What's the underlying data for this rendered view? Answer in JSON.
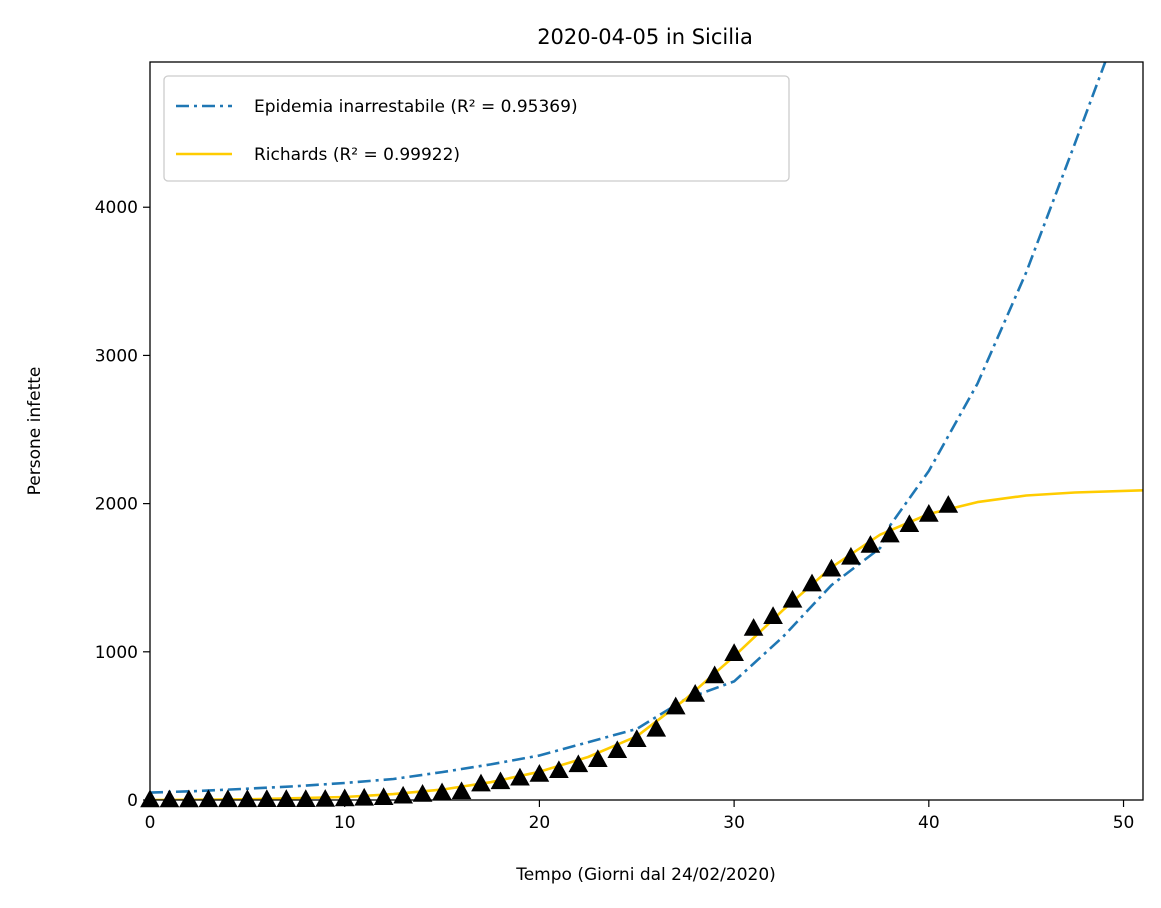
{
  "chart_data": {
    "type": "line",
    "title": "2020-04-05 in Sicilia",
    "xlabel": "Tempo (Giorni dal 24/02/2020)",
    "ylabel": "Persone infette",
    "xlim": [
      0,
      51
    ],
    "ylim": [
      0,
      4980
    ],
    "xticks": [
      0,
      10,
      20,
      30,
      40,
      50
    ],
    "yticks": [
      0,
      1000,
      2000,
      3000,
      4000
    ],
    "legend_position": "upper-left",
    "colors": {
      "exponential": "#1f77b4",
      "richards": "#ffcc00",
      "observed": "#000000"
    },
    "series": [
      {
        "name": "Epidemia inarrestabile (R² = 0.95369)",
        "style": "dashdot",
        "model": "exponential",
        "x": [
          0,
          2.5,
          5,
          7.5,
          10,
          12.5,
          15,
          17.5,
          20,
          22.5,
          25,
          26,
          27.5,
          30,
          32.5,
          35,
          37.5,
          38,
          40,
          42.5,
          45,
          47.5,
          49,
          50,
          51
        ],
        "y": [
          50,
          61,
          76,
          93,
          115,
          142,
          188,
          240,
          300,
          390,
          480,
          560,
          680,
          800,
          1100,
          1450,
          1700,
          1850,
          2220,
          2810,
          3560,
          4430,
          4960,
          5300,
          5700
        ]
      },
      {
        "name": "Richards (R² = 0.99922)",
        "style": "solid",
        "model": "richards",
        "x": [
          0,
          5,
          10,
          12.5,
          15,
          17.5,
          20,
          22.5,
          25,
          27.5,
          30,
          32.5,
          35,
          37.5,
          40,
          42.5,
          45,
          47.5,
          51
        ],
        "y": [
          0,
          5,
          20,
          40,
          70,
          120,
          190,
          290,
          430,
          680,
          970,
          1280,
          1570,
          1790,
          1930,
          2010,
          2055,
          2075,
          2090
        ]
      },
      {
        "name": "",
        "style": "triangle-marker",
        "model": "observed",
        "x": [
          0,
          1,
          2,
          3,
          4,
          5,
          6,
          7,
          8,
          9,
          10,
          11,
          12,
          13,
          14,
          15,
          16,
          17,
          18,
          19,
          20,
          21,
          22,
          23,
          24,
          25,
          26,
          27,
          28,
          29,
          30,
          31,
          32,
          33,
          34,
          35,
          36,
          37,
          38,
          39,
          40,
          41
        ],
        "y": [
          3,
          3,
          3,
          4,
          4,
          4,
          5,
          5,
          5,
          6,
          10,
          14,
          18,
          28,
          40,
          50,
          58,
          110,
          125,
          150,
          175,
          200,
          240,
          275,
          335,
          410,
          480,
          630,
          715,
          840,
          990,
          1160,
          1240,
          1350,
          1460,
          1560,
          1640,
          1720,
          1790,
          1860,
          1930,
          1990
        ]
      }
    ]
  }
}
